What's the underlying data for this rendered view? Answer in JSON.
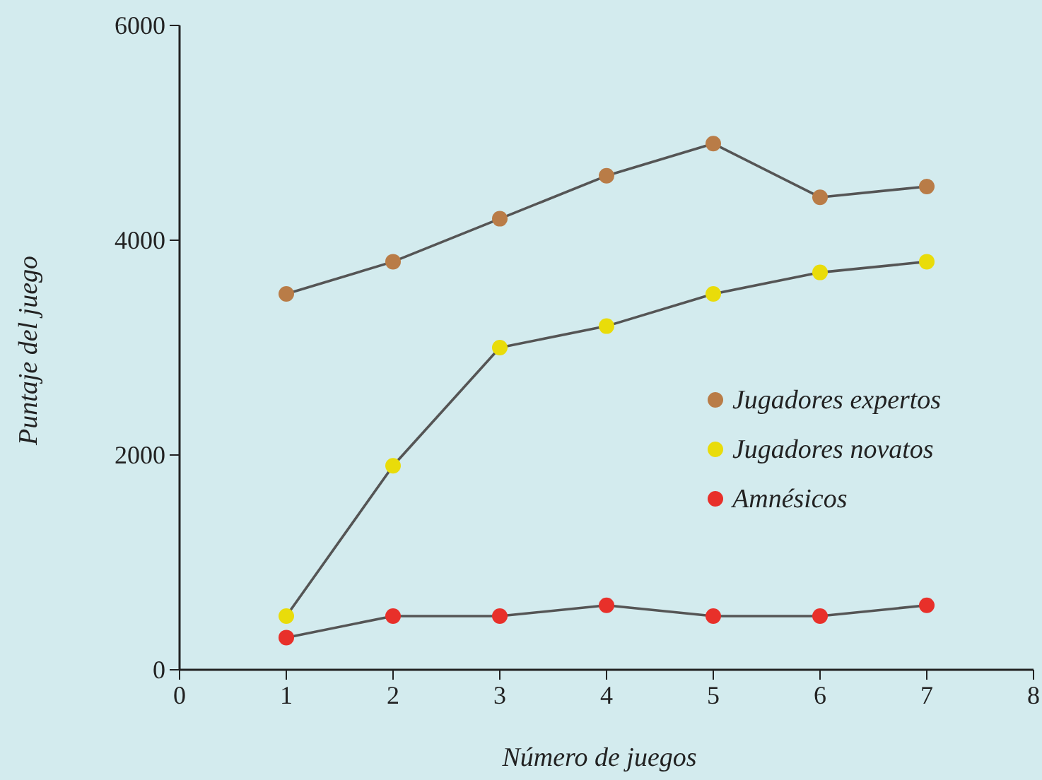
{
  "chart_data": {
    "type": "line",
    "xlabel": "Número de juegos",
    "ylabel": "Puntaje del juego",
    "x": [
      1,
      2,
      3,
      4,
      5,
      6,
      7
    ],
    "series": [
      {
        "name": "Jugadores expertos",
        "color": "#b97c47",
        "values": [
          3500,
          3800,
          4200,
          4600,
          4900,
          4400,
          4500
        ]
      },
      {
        "name": "Jugadores novatos",
        "color": "#e9dc0a",
        "values": [
          500,
          1900,
          3000,
          3200,
          3500,
          3700,
          3800
        ]
      },
      {
        "name": "Amnésicos",
        "color": "#e8302a",
        "values": [
          300,
          500,
          500,
          600,
          500,
          500,
          600
        ]
      }
    ],
    "xlim": [
      0,
      8
    ],
    "xticks": [
      0,
      1,
      2,
      3,
      4,
      5,
      6,
      7,
      8
    ],
    "ylim": [
      0,
      6000
    ],
    "yticks": [
      0,
      2000,
      4000,
      6000
    ],
    "grid": false,
    "legend": "right",
    "marker": "circle",
    "line_style": "solid"
  }
}
